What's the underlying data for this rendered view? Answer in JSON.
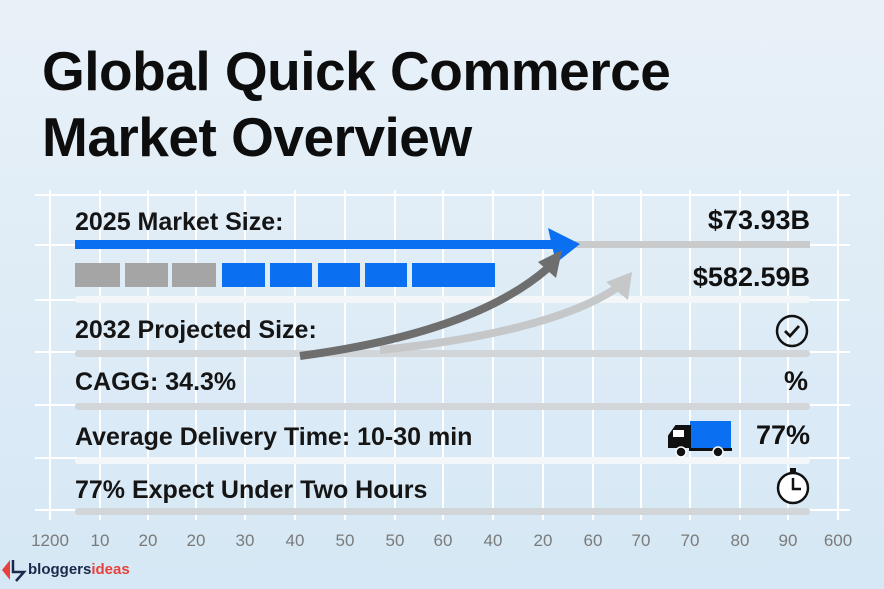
{
  "title": {
    "line1": "Global Quick Commerce",
    "line2": "Market Overview"
  },
  "rows": {
    "market_2025_label": "2025 Market Size:",
    "market_2025_value": "$73.93B",
    "market_2032_value": "$582.59B",
    "market_2032_label": "2032 Projected Size:",
    "cagr_label": "CAGG: 34.3%",
    "cagr_symbol": "%",
    "delivery_label": "Average Delivery Time: 10-30 min",
    "delivery_value": "77%",
    "expect_label": "77% Expect Under Two Hours"
  },
  "icons": {
    "check": "check-circle-icon",
    "truck": "truck-icon",
    "clock": "stopwatch-icon"
  },
  "segments": {
    "gray_count": 3,
    "blue_count": 5
  },
  "axis_ticks": [
    "1200",
    "10",
    "20",
    "20",
    "30",
    "40",
    "50",
    "50",
    "60",
    "40",
    "20",
    "60",
    "70",
    "70",
    "80",
    "90",
    "600"
  ],
  "logo": {
    "part1": "bloggers",
    "part2": "ideas"
  },
  "colors": {
    "accent_blue": "#0a6ff0",
    "gray": "#a5a5a5",
    "logo_red": "#e8413c",
    "logo_navy": "#1b2a4a"
  }
}
